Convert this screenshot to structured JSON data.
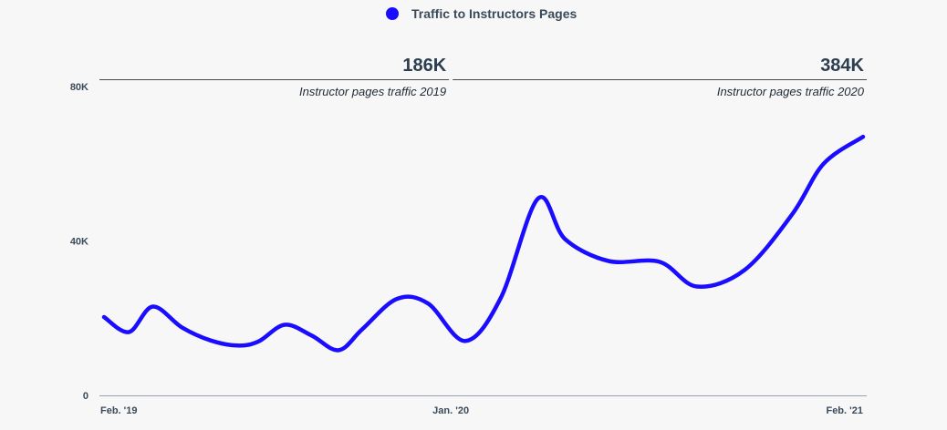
{
  "chart_data": {
    "type": "line",
    "legend": {
      "placement": "top-center"
    },
    "series": [
      {
        "name": "Traffic to Instructors Pages",
        "color": "#1a0dff",
        "points": [
          {
            "x": "2019-02-01",
            "y": 20300
          },
          {
            "x": "2019-02-25",
            "y": 16400
          },
          {
            "x": "2019-03-20",
            "y": 23000
          },
          {
            "x": "2019-04-17",
            "y": 17600
          },
          {
            "x": "2019-05-15",
            "y": 14200
          },
          {
            "x": "2019-06-10",
            "y": 12900
          },
          {
            "x": "2019-06-30",
            "y": 14000
          },
          {
            "x": "2019-07-25",
            "y": 18300
          },
          {
            "x": "2019-08-20",
            "y": 15500
          },
          {
            "x": "2019-09-15",
            "y": 11700
          },
          {
            "x": "2019-10-08",
            "y": 17200
          },
          {
            "x": "2019-11-10",
            "y": 25000
          },
          {
            "x": "2019-12-10",
            "y": 23800
          },
          {
            "x": "2020-01-15",
            "y": 14100
          },
          {
            "x": "2020-02-18",
            "y": 25200
          },
          {
            "x": "2020-03-25",
            "y": 51000
          },
          {
            "x": "2020-04-20",
            "y": 40500
          },
          {
            "x": "2020-06-01",
            "y": 34800
          },
          {
            "x": "2020-07-20",
            "y": 34600
          },
          {
            "x": "2020-08-25",
            "y": 28200
          },
          {
            "x": "2020-10-10",
            "y": 32500
          },
          {
            "x": "2020-11-25",
            "y": 47000
          },
          {
            "x": "2020-12-25",
            "y": 60000
          },
          {
            "x": "2021-02-01",
            "y": 67000
          }
        ]
      }
    ],
    "x_ticks": [
      {
        "x": "2019-02-01",
        "label": "Feb. '19"
      },
      {
        "x": "2020-01-01",
        "label": "Jan. '20"
      },
      {
        "x": "2021-02-01",
        "label": "Feb. '21"
      }
    ],
    "y_ticks": [
      {
        "y": 0,
        "label": "0"
      },
      {
        "y": 40000,
        "label": "40K"
      },
      {
        "y": 80000,
        "label": "80K"
      }
    ],
    "xlim": [
      "2019-02-01",
      "2021-02-01"
    ],
    "ylim": [
      0,
      80000
    ],
    "grid": false,
    "annotations": [
      {
        "from": "2019-02-01",
        "to": "2020-01-01",
        "value": "186K",
        "label": "Instructor pages traffic 2019"
      },
      {
        "from": "2020-01-01",
        "to": "2021-02-01",
        "value": "384K",
        "label": "Instructor pages traffic 2020"
      }
    ]
  }
}
